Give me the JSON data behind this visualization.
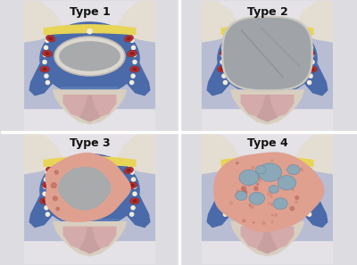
{
  "labels": [
    "Type 1",
    "Type 2",
    "Type 3",
    "Type 4"
  ],
  "bg_outer": "#dddce0",
  "bg_panel": "#e8e6ea",
  "lavender_bg": "#b8bdd4",
  "blue_tissue": "#4a6aaa",
  "blue_mid": "#6080b8",
  "bone_beige": "#d8cfc0",
  "bone_light": "#e4ddd2",
  "yellow_diaphragm": "#e8d455",
  "yellow_light": "#f0e070",
  "pink_sphenoid": "#c8a0a0",
  "pink_stalk": "#d4aaaa",
  "pink_light": "#e8c0b8",
  "cyst_gray": "#a8aaac",
  "cyst_wall": "#d8d4cc",
  "white_dot": "#f0edd8",
  "red_dark": "#882020",
  "red_mid": "#b83030",
  "red_light": "#cc5050",
  "separator": "#b8b4bc",
  "label_fontsize": 9,
  "panel_bg": "#e4e2e6"
}
